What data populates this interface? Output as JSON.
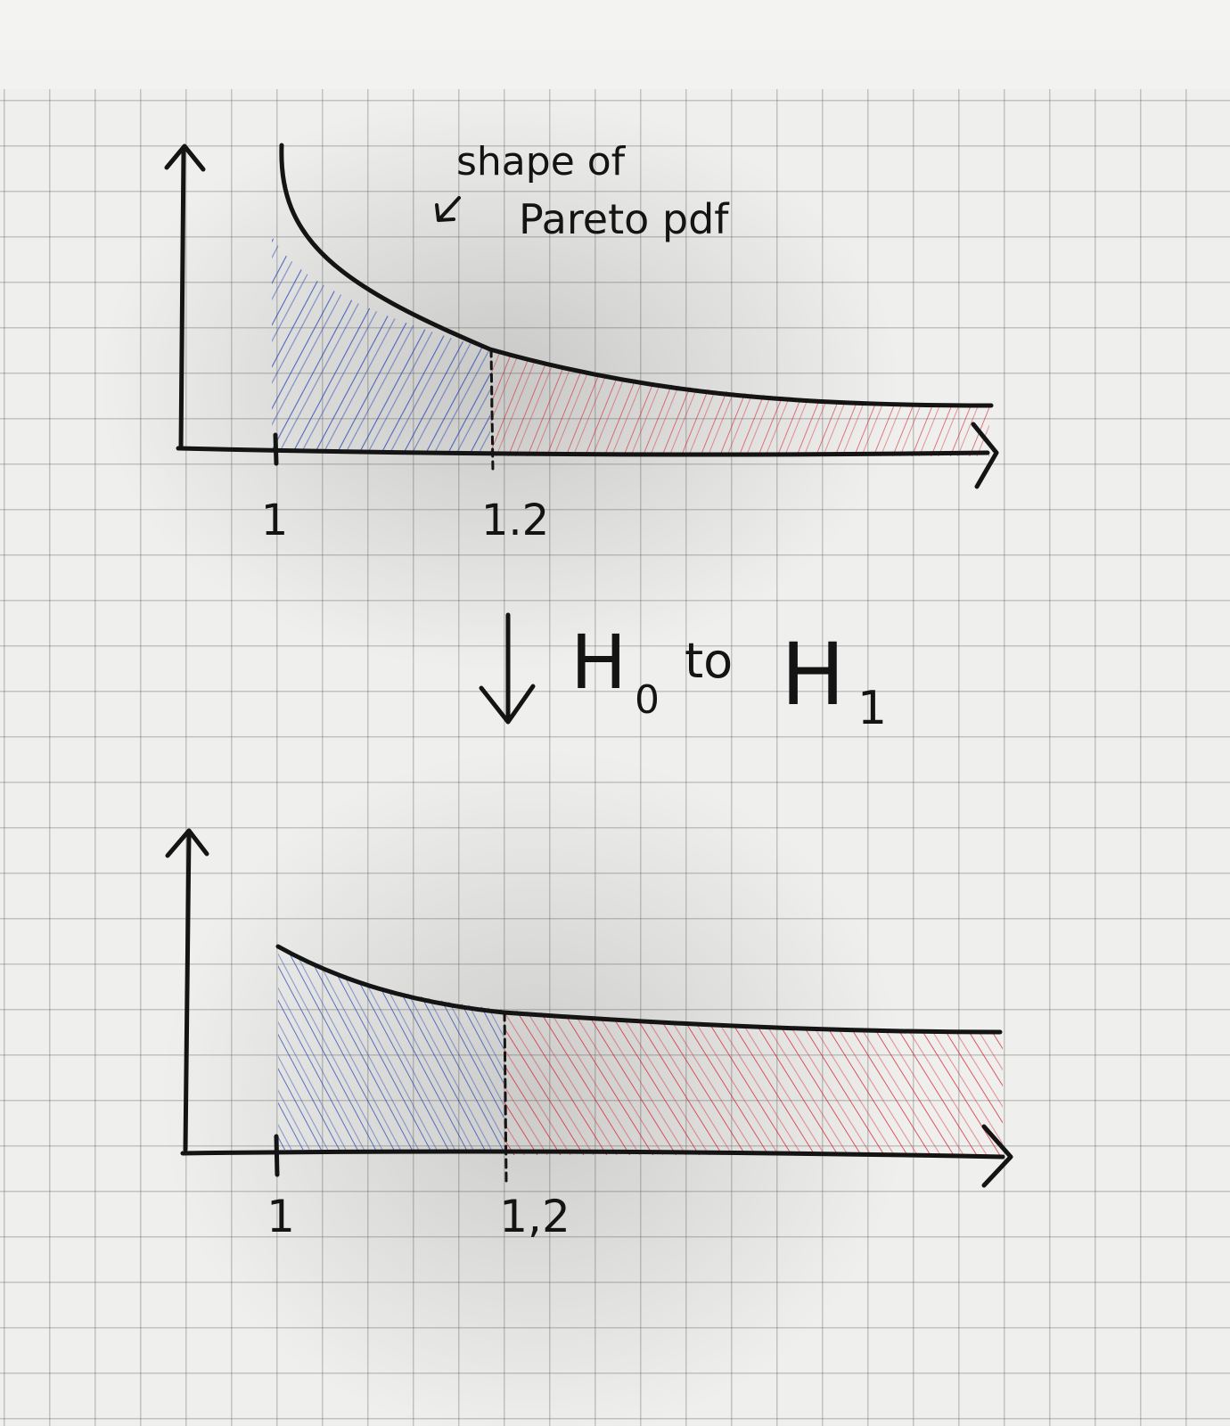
{
  "annotation": {
    "line1": "shape of",
    "line2": "Pareto pdf"
  },
  "transition": {
    "from": "H",
    "from_sub": "0",
    "word": "to",
    "to": "H",
    "to_sub": "1"
  },
  "top_plot": {
    "tick_left": "1",
    "tick_split": "1.2"
  },
  "bottom_plot": {
    "tick_left": "1",
    "tick_split": "1,2"
  },
  "colors": {
    "ink": "#141414",
    "left_region": "#1f3fb5",
    "right_region": "#d81f2f"
  }
}
